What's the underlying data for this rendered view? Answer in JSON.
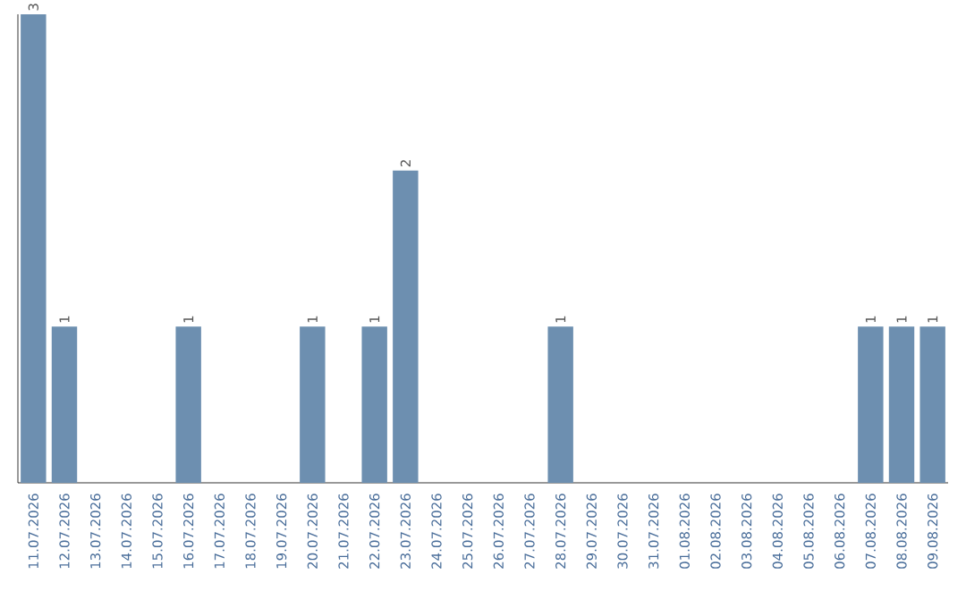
{
  "chart_data": {
    "type": "bar",
    "categories": [
      "11.07.2026",
      "12.07.2026",
      "13.07.2026",
      "14.07.2026",
      "15.07.2026",
      "16.07.2026",
      "17.07.2026",
      "18.07.2026",
      "19.07.2026",
      "20.07.2026",
      "21.07.2026",
      "22.07.2026",
      "23.07.2026",
      "24.07.2026",
      "25.07.2026",
      "26.07.2026",
      "27.07.2026",
      "28.07.2026",
      "29.07.2026",
      "30.07.2026",
      "31.07.2026",
      "01.08.2026",
      "02.08.2026",
      "03.08.2026",
      "04.08.2026",
      "05.08.2026",
      "06.08.2026",
      "07.08.2026",
      "08.08.2026",
      "09.08.2026"
    ],
    "values": [
      3,
      1,
      0,
      0,
      0,
      1,
      0,
      0,
      0,
      1,
      0,
      1,
      2,
      0,
      0,
      0,
      0,
      1,
      0,
      0,
      0,
      0,
      0,
      0,
      0,
      0,
      0,
      1,
      1,
      1
    ],
    "value_labels": [
      "3",
      "1",
      null,
      null,
      null,
      "1",
      null,
      null,
      null,
      "1",
      null,
      "1",
      "2",
      null,
      null,
      null,
      null,
      "1",
      null,
      null,
      null,
      null,
      null,
      null,
      null,
      null,
      null,
      "1",
      "1",
      "1"
    ],
    "color": "#6d8fb0"
  }
}
